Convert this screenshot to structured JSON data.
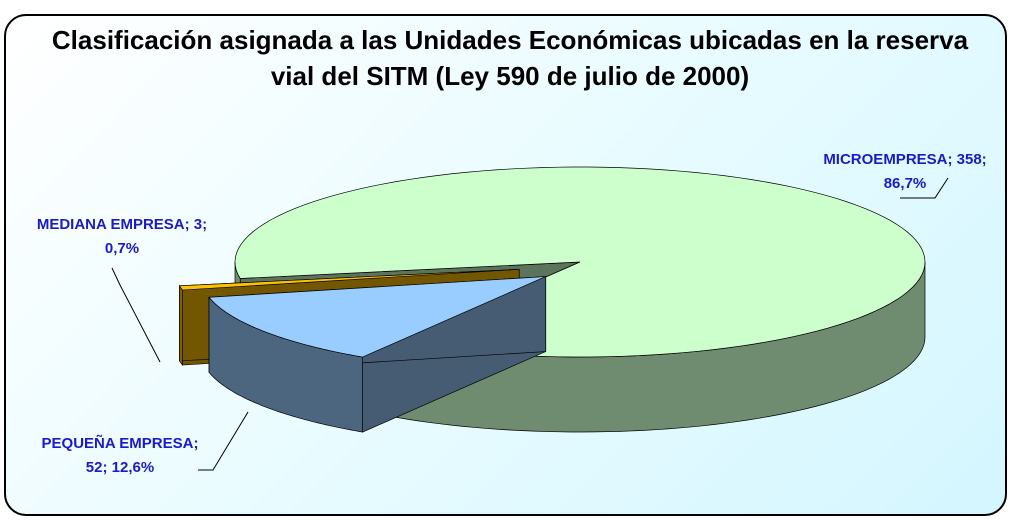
{
  "chart_data": {
    "type": "pie",
    "title": "Clasificación asignada a las Unidades Económicas ubicadas en la reserva vial del SITM (Ley 590 de julio de 2000)",
    "values": [
      358,
      52,
      3
    ],
    "value_labels": [
      "MICROEMPRESA; 358; 86,7%",
      "PEQUEÑA EMPRESA; 52; 12,6%",
      "MEDIANA EMPRESA; 3; 0,7%"
    ],
    "colors": [
      "#ccffcc",
      "#99ccff",
      "#ffc000"
    ],
    "label_color": "#1a1acc"
  }
}
